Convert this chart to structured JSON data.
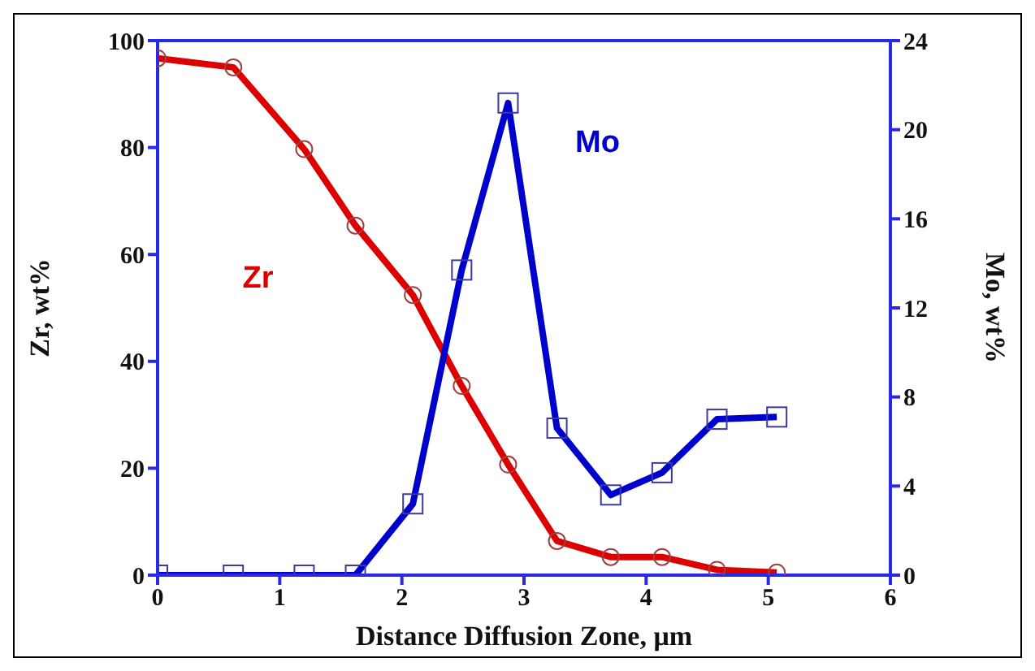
{
  "chart_data": {
    "type": "line",
    "xlabel": "Distance Diffusion Zone, μm",
    "ylabel": "Zr, wt%",
    "y2label": "Mo, wt%",
    "x": [
      0,
      0.62,
      1.2,
      1.62,
      2.09,
      2.49,
      2.87,
      3.27,
      3.71,
      4.13,
      4.58,
      5.07
    ],
    "series": [
      {
        "name": "Zr",
        "color": "#dd0000",
        "marker": "circle",
        "values": [
          96.7,
          95,
          79.7,
          65.4,
          52.4,
          35.4,
          20.7,
          6.4,
          3.4,
          3.4,
          1.0,
          0.5
        ]
      },
      {
        "name": "Mo",
        "color": "#0000cc",
        "marker": "square",
        "axis": "y2",
        "values": [
          0,
          0,
          0,
          0,
          3.2,
          13.7,
          21.2,
          6.6,
          3.6,
          4.6,
          7.0,
          7.1
        ]
      }
    ],
    "xlim": [
      0,
      6
    ],
    "xticks": [
      0,
      1,
      2,
      3,
      4,
      5,
      6
    ],
    "ylim": [
      0,
      100
    ],
    "yticks": [
      0,
      20,
      40,
      60,
      80,
      100
    ],
    "y2lim": [
      0,
      24
    ],
    "y2ticks": [
      0,
      4,
      8,
      12,
      16,
      20,
      24
    ],
    "grid": false,
    "legend": false,
    "line_style": "solid"
  }
}
